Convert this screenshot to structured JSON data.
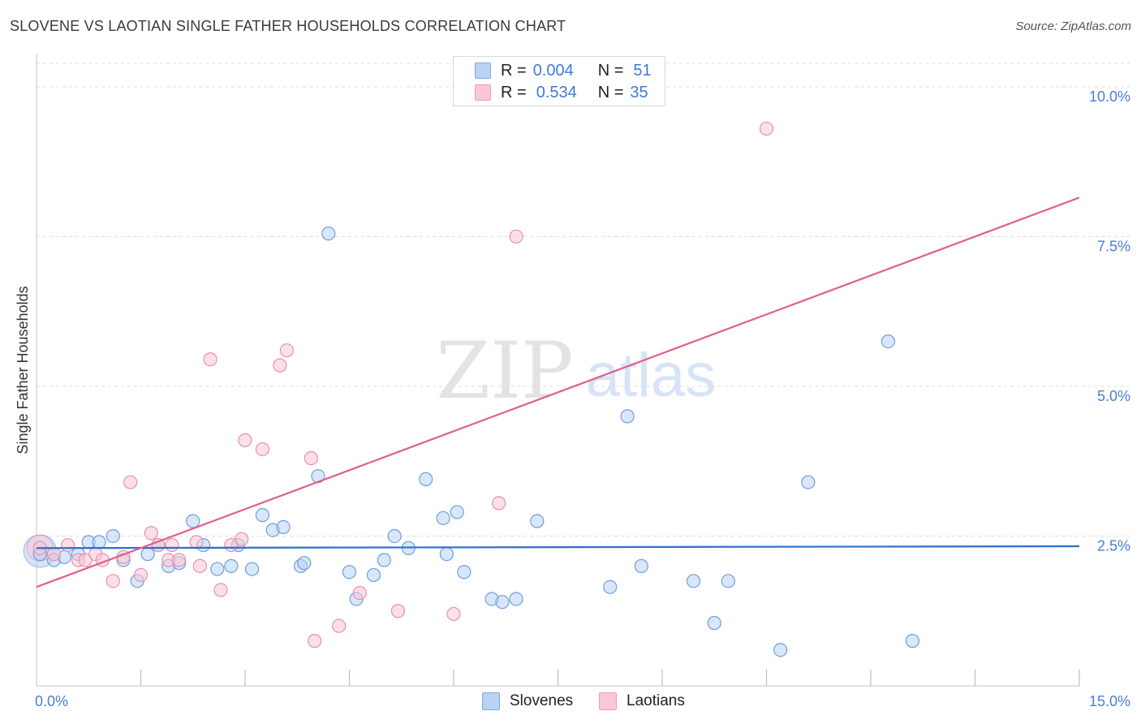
{
  "header": {
    "title": "SLOVENE VS LAOTIAN SINGLE FATHER HOUSEHOLDS CORRELATION CHART",
    "source": "Source: ZipAtlas.com"
  },
  "legend": {
    "rows": [
      {
        "r_label": "R =",
        "r_value": "0.004",
        "n_label": "N =",
        "n_value": "51"
      },
      {
        "r_label": "R =",
        "r_value": "0.534",
        "n_label": "N =",
        "n_value": "35"
      }
    ]
  },
  "watermark": {
    "zip": "ZIP",
    "atlas": "atlas"
  },
  "colors": {
    "blue_fill": "#b8d3f4",
    "blue_stroke": "#6f9fdc",
    "blue_line": "#2f6fc9",
    "pink_fill": "#f9c7d6",
    "pink_stroke": "#ea8fac",
    "pink_line": "#e0608a",
    "tick_label": "#4a7fd0",
    "grid": "#dcdcdc"
  },
  "chart_data": {
    "type": "scatter",
    "title": "SLOVENE VS LAOTIAN SINGLE FATHER HOUSEHOLDS CORRELATION CHART",
    "xlabel": "",
    "ylabel": "Single Father Households",
    "xlim": [
      0,
      15
    ],
    "ylim": [
      0,
      10.5
    ],
    "x_tick_labels": [
      {
        "value": 0,
        "label": "0.0%"
      },
      {
        "value": 15,
        "label": "15.0%"
      }
    ],
    "x_minor_ticks": [
      1.5,
      3,
      4.5,
      6,
      7.5,
      9,
      10.5,
      12,
      13.5
    ],
    "y_ticks": [
      {
        "value": 2.5,
        "label": "2.5%"
      },
      {
        "value": 5.0,
        "label": "5.0%"
      },
      {
        "value": 7.5,
        "label": "7.5%"
      },
      {
        "value": 10.0,
        "label": "10.0%"
      }
    ],
    "grid": true,
    "legend_position": "top-center",
    "series": [
      {
        "name": "Slovenes",
        "color": "blue",
        "trend": {
          "x": [
            0,
            15
          ],
          "y": [
            2.3,
            2.33
          ]
        },
        "points": [
          [
            0.05,
            2.2
          ],
          [
            0.25,
            2.1
          ],
          [
            0.4,
            2.15
          ],
          [
            0.6,
            2.2
          ],
          [
            0.75,
            2.4
          ],
          [
            0.9,
            2.4
          ],
          [
            1.1,
            2.5
          ],
          [
            1.25,
            2.1
          ],
          [
            1.45,
            1.75
          ],
          [
            1.6,
            2.2
          ],
          [
            1.75,
            2.35
          ],
          [
            1.9,
            2.0
          ],
          [
            2.05,
            2.05
          ],
          [
            2.25,
            2.75
          ],
          [
            2.4,
            2.35
          ],
          [
            2.6,
            1.95
          ],
          [
            2.8,
            2.0
          ],
          [
            2.9,
            2.35
          ],
          [
            3.1,
            1.95
          ],
          [
            3.25,
            2.85
          ],
          [
            3.4,
            2.6
          ],
          [
            3.55,
            2.65
          ],
          [
            3.8,
            2.0
          ],
          [
            3.85,
            2.05
          ],
          [
            4.05,
            3.5
          ],
          [
            4.2,
            7.55
          ],
          [
            4.5,
            1.9
          ],
          [
            4.6,
            1.45
          ],
          [
            4.85,
            1.85
          ],
          [
            5.0,
            2.1
          ],
          [
            5.15,
            2.5
          ],
          [
            5.35,
            2.3
          ],
          [
            5.6,
            3.45
          ],
          [
            5.85,
            2.8
          ],
          [
            5.9,
            2.2
          ],
          [
            6.05,
            2.9
          ],
          [
            6.15,
            1.9
          ],
          [
            6.55,
            1.45
          ],
          [
            6.7,
            1.4
          ],
          [
            6.9,
            1.45
          ],
          [
            7.2,
            2.75
          ],
          [
            8.25,
            1.65
          ],
          [
            8.5,
            4.5
          ],
          [
            8.7,
            2.0
          ],
          [
            9.45,
            1.75
          ],
          [
            9.75,
            1.05
          ],
          [
            9.95,
            1.75
          ],
          [
            10.7,
            0.6
          ],
          [
            11.1,
            3.4
          ],
          [
            12.25,
            5.75
          ],
          [
            12.6,
            0.75
          ]
        ]
      },
      {
        "name": "Laotians",
        "color": "pink",
        "trend": {
          "x": [
            0,
            15
          ],
          "y": [
            1.65,
            8.15
          ]
        },
        "points": [
          [
            0.05,
            2.3
          ],
          [
            0.25,
            2.2
          ],
          [
            0.45,
            2.35
          ],
          [
            0.6,
            2.1
          ],
          [
            0.7,
            2.1
          ],
          [
            0.85,
            2.2
          ],
          [
            0.95,
            2.1
          ],
          [
            1.1,
            1.75
          ],
          [
            1.25,
            2.15
          ],
          [
            1.35,
            3.4
          ],
          [
            1.5,
            1.85
          ],
          [
            1.65,
            2.55
          ],
          [
            1.75,
            2.35
          ],
          [
            1.9,
            2.1
          ],
          [
            1.95,
            2.35
          ],
          [
            2.05,
            2.1
          ],
          [
            2.3,
            2.4
          ],
          [
            2.35,
            2.0
          ],
          [
            2.5,
            5.45
          ],
          [
            2.65,
            1.6
          ],
          [
            2.8,
            2.35
          ],
          [
            2.95,
            2.45
          ],
          [
            3.0,
            4.1
          ],
          [
            3.25,
            3.95
          ],
          [
            3.5,
            5.35
          ],
          [
            3.6,
            5.6
          ],
          [
            3.95,
            3.8
          ],
          [
            4.0,
            0.75
          ],
          [
            4.35,
            1.0
          ],
          [
            4.65,
            1.55
          ],
          [
            5.2,
            1.25
          ],
          [
            6.0,
            1.2
          ],
          [
            6.65,
            3.05
          ],
          [
            6.9,
            7.5
          ],
          [
            10.5,
            9.3
          ]
        ]
      }
    ]
  }
}
